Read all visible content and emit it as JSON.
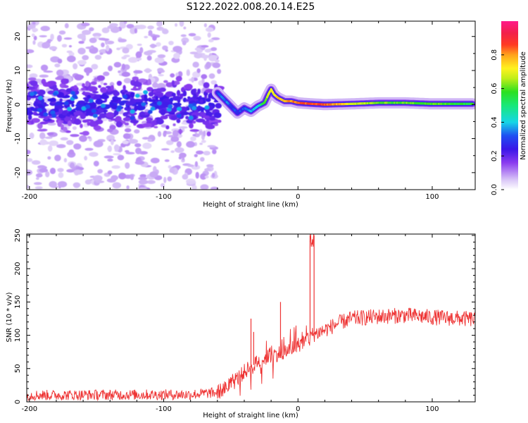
{
  "figure": {
    "title": "S122.2022.008.20.14.E25"
  },
  "chart_data": [
    {
      "type": "heatmap",
      "name": "spectrogram",
      "xlabel": "Height of straight line (km)",
      "ylabel": "Frequency (Hz)",
      "xlim": [
        -202,
        132
      ],
      "ylim": [
        -25,
        24.5
      ],
      "xticks": [
        -200,
        -100,
        0,
        100
      ],
      "xtick_labels": [
        "-200",
        "-100",
        "0",
        "100"
      ],
      "yticks": [
        -20,
        -10,
        0,
        10,
        20
      ],
      "ytick_labels": [
        "-20",
        "-10",
        "0",
        "10",
        "20"
      ],
      "grid": false,
      "colorbar": {
        "label": "Normalized spectral amplitude",
        "range": [
          0,
          1
        ],
        "ticks": [
          0.0,
          0.2,
          0.4,
          0.6,
          0.8
        ],
        "tick_labels": [
          "0.0",
          "0.2",
          "0.4",
          "0.6",
          "0.8"
        ],
        "colormap": "white-lavender-purple-blue-cyan-green-yellow-orange-red-pink"
      },
      "ridge": {
        "description_points_x": [
          -60,
          -55,
          -50,
          -45,
          -40,
          -35,
          -30,
          -25,
          -22,
          -20,
          -18,
          -15,
          -10,
          -5,
          0,
          10,
          20,
          40,
          60,
          80,
          100,
          130
        ],
        "description_points_y": [
          3.5,
          1.5,
          -0.5,
          -2.5,
          -1,
          -2,
          -0.5,
          0.5,
          3,
          4.5,
          3,
          2,
          1,
          1,
          0.5,
          0.2,
          0,
          0.2,
          0.5,
          0.5,
          0.2,
          0.2
        ],
        "amplitude": [
          0.3,
          0.35,
          0.3,
          0.3,
          0.3,
          0.35,
          0.4,
          0.6,
          0.7,
          0.7,
          0.7,
          0.75,
          0.8,
          0.8,
          0.85,
          0.85,
          0.85,
          0.7,
          0.6,
          0.6,
          0.6,
          0.55
        ]
      },
      "noise_region_x": [
        -202,
        -65
      ],
      "noise_band_y": [
        -7,
        7
      ]
    },
    {
      "type": "line",
      "name": "snr",
      "xlabel": "Height of straight line (km)",
      "ylabel": "SNR (10 * v/v)",
      "xlim": [
        -202,
        132
      ],
      "ylim": [
        0,
        252
      ],
      "xticks": [
        -200,
        -100,
        0,
        100
      ],
      "xtick_labels": [
        "-200",
        "-100",
        "0",
        "100"
      ],
      "yticks": [
        0,
        50,
        100,
        150,
        200,
        250
      ],
      "ytick_labels": [
        "0",
        "50",
        "100",
        "150",
        "200",
        "250"
      ],
      "grid": false,
      "color": "#ee3333",
      "trend": {
        "x": [
          -202,
          -80,
          -60,
          -50,
          -40,
          -30,
          -20,
          -10,
          0,
          10,
          20,
          30,
          40,
          60,
          80,
          100,
          132
        ],
        "y": [
          10,
          11,
          14,
          25,
          45,
          60,
          70,
          75,
          85,
          100,
          108,
          118,
          125,
          128,
          130,
          127,
          124
        ]
      },
      "spikes": [
        {
          "x": -35,
          "y": 125
        },
        {
          "x": -33,
          "y": 105
        },
        {
          "x": -13,
          "y": 150
        },
        {
          "x": 9,
          "y": 250
        },
        {
          "x": 12,
          "y": 250
        }
      ],
      "noise_amplitude": 10
    }
  ]
}
